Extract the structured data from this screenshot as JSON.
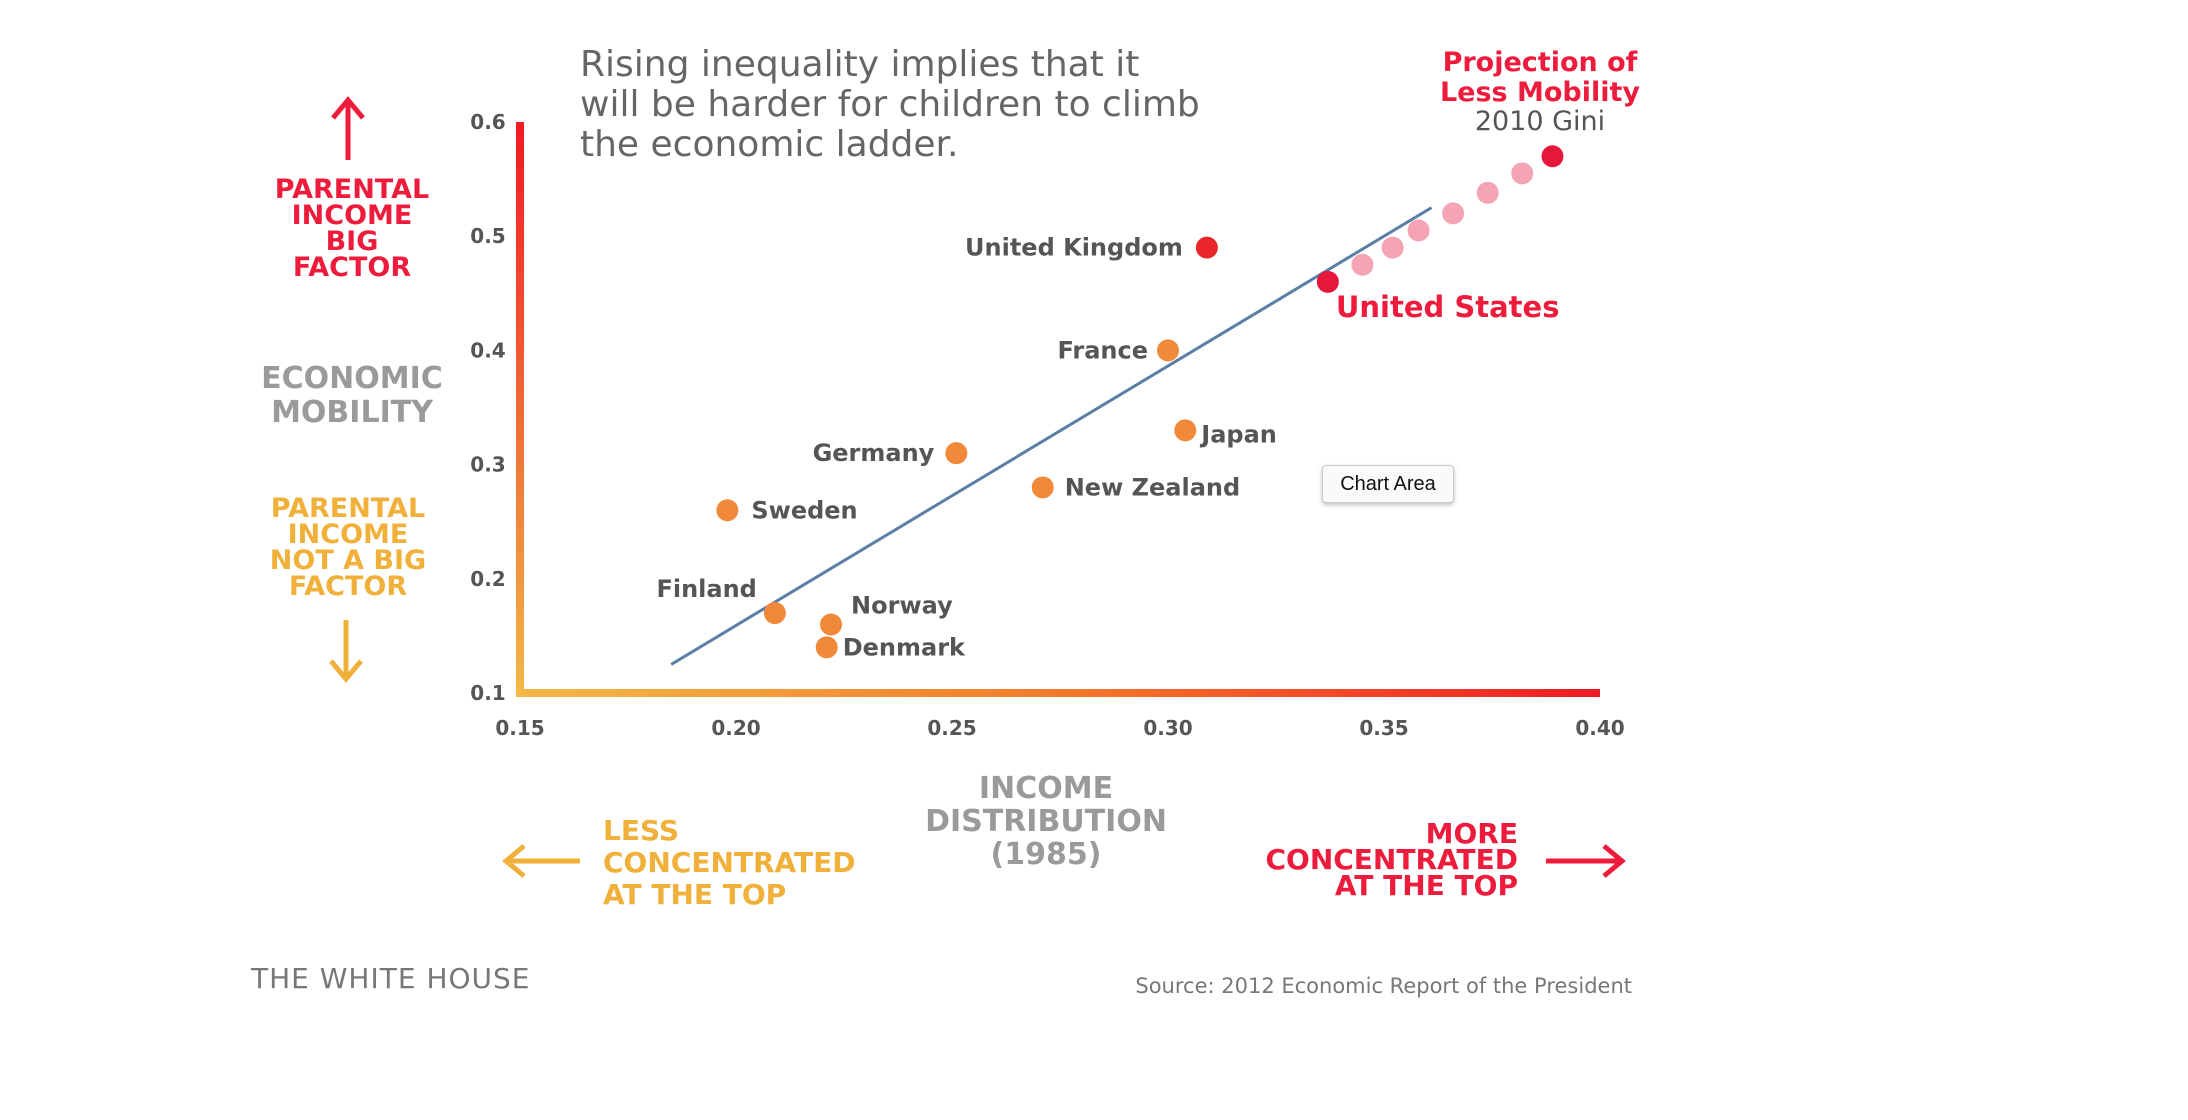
{
  "chart_data": {
    "type": "scatter",
    "title": "Rising inequality implies that it\nwill be harder for children to climb\nthe economic ladder.",
    "xlabel": "INCOME\nDISTRIBUTION\n(1985)",
    "ylabel": "ECONOMIC\nMOBILITY",
    "xlim": [
      0.15,
      0.4
    ],
    "ylim": [
      0.1,
      0.6
    ],
    "x_ticks": [
      "0.15",
      "0.20",
      "0.25",
      "0.30",
      "0.35",
      "0.40"
    ],
    "y_ticks": [
      "0.1",
      "0.2",
      "0.3",
      "0.4",
      "0.5",
      "0.6"
    ],
    "y_top_note": "PARENTAL\nINCOME\nBIG\nFACTOR",
    "y_bottom_note": "PARENTAL\nINCOME\nNOT A BIG\nFACTOR",
    "x_left_note": "LESS\nCONCENTRATED\nAT THE TOP",
    "x_right_note": "MORE\nCONCENTRATED\nAT THE TOP",
    "projection_label_line1": "Projection of",
    "projection_label_line2": "Less Mobility",
    "projection_label_line3": "2010 Gini",
    "countries": [
      {
        "name": "United Kingdom",
        "x": 0.309,
        "y": 0.49
      },
      {
        "name": "France",
        "x": 0.3,
        "y": 0.4
      },
      {
        "name": "Japan",
        "x": 0.304,
        "y": 0.33
      },
      {
        "name": "Germany",
        "x": 0.251,
        "y": 0.31
      },
      {
        "name": "New Zealand",
        "x": 0.271,
        "y": 0.28
      },
      {
        "name": "Sweden",
        "x": 0.198,
        "y": 0.26
      },
      {
        "name": "Finland",
        "x": 0.209,
        "y": 0.17
      },
      {
        "name": "Norway",
        "x": 0.222,
        "y": 0.16
      },
      {
        "name": "Denmark",
        "x": 0.221,
        "y": 0.14
      },
      {
        "name": "United States",
        "x": 0.337,
        "y": 0.46
      }
    ],
    "projection_points": [
      {
        "x": 0.345,
        "y": 0.475
      },
      {
        "x": 0.352,
        "y": 0.49
      },
      {
        "x": 0.358,
        "y": 0.505
      },
      {
        "x": 0.366,
        "y": 0.52
      },
      {
        "x": 0.374,
        "y": 0.538
      },
      {
        "x": 0.382,
        "y": 0.555
      },
      {
        "x": 0.389,
        "y": 0.57
      }
    ],
    "trend_line": [
      {
        "x": 0.185,
        "y": 0.125
      },
      {
        "x": 0.361,
        "y": 0.525
      }
    ],
    "colors": {
      "country_point": "#f08a3a",
      "us_point": "#e5183b",
      "uk_point": "#e8262b",
      "projection_point": "#f4a4b4",
      "projection_end": "#e5183b",
      "trend_line": "#5a7fa6",
      "axis_top": "#ee1b24",
      "axis_bottom": "#f3b845",
      "label_dark": "#555555",
      "label_gray": "#9a9a9a",
      "red_text": "#ee1c3c",
      "orange_text": "#f0b03a"
    }
  },
  "branding": "THE WHITE HOUSE",
  "source": "Source: 2012 Economic Report of the President",
  "tooltip": "Chart Area"
}
